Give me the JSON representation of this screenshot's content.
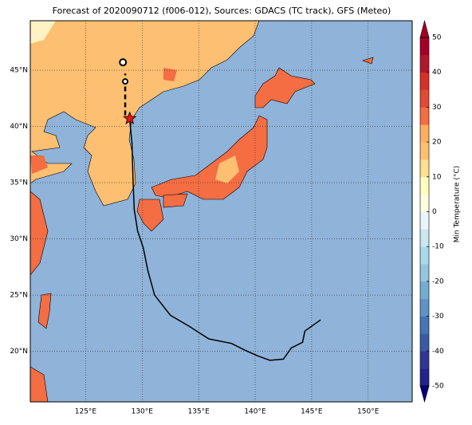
{
  "title": "Forecast of 2020090712 (f006-012), Sources: GDACS (TC track), GFS (Meteo)",
  "map": {
    "type": "map",
    "xlim": [
      120.1,
      153.9
    ],
    "ylim": [
      15.5,
      49.4
    ],
    "xticks": [
      {
        "value": 125,
        "label": "125°E"
      },
      {
        "value": 130,
        "label": "130°E"
      },
      {
        "value": 135,
        "label": "135°E"
      },
      {
        "value": 140,
        "label": "140°E"
      },
      {
        "value": 145,
        "label": "145°E"
      },
      {
        "value": 150,
        "label": "150°E"
      }
    ],
    "yticks": [
      {
        "value": 20,
        "label": "20°N"
      },
      {
        "value": 25,
        "label": "25°N"
      },
      {
        "value": 30,
        "label": "30°N"
      },
      {
        "value": 35,
        "label": "35°N"
      },
      {
        "value": 40,
        "label": "40°N"
      },
      {
        "value": 45,
        "label": "45°N"
      }
    ],
    "grid": true,
    "track": {
      "color": "#000000",
      "lon": [
        145.8,
        144.4,
        144.2,
        143.2,
        142.5,
        141.3,
        140.2,
        139.1,
        137.9,
        135.9,
        134.2,
        132.5,
        131.1,
        130.5,
        130.1,
        129.6,
        129.3,
        129.2,
        129.1,
        128.9
      ],
      "lat": [
        22.8,
        21.8,
        20.8,
        20.3,
        19.3,
        19.2,
        19.6,
        20.1,
        20.7,
        21.1,
        22.2,
        23.2,
        25.0,
        27.2,
        29.2,
        30.7,
        32.6,
        35.0,
        38.5,
        40.6
      ]
    },
    "forecast_track": {
      "lon": [
        128.5,
        128.5
      ],
      "lat": [
        41.0,
        44.7
      ]
    },
    "positions": {
      "lon": [
        128.3,
        128.5
      ],
      "lat": [
        45.7,
        44.0
      ]
    },
    "current_position": {
      "lon": 128.9,
      "lat": 40.7,
      "color": "#e8150f"
    }
  },
  "colorbar": {
    "label": "Min Temperature (°C)",
    "ylim": [
      -50,
      50
    ],
    "yticks": [
      -50,
      -40,
      -30,
      -20,
      -10,
      0,
      10,
      20,
      30,
      40,
      50
    ],
    "colors": [
      "#23238a",
      "#313695",
      "#3a5aa5",
      "#4575b4",
      "#5f93c5",
      "#74add1",
      "#96c5de",
      "#abd9e9",
      "#cbe7f1",
      "#e8f5fa",
      "#ffffe0",
      "#ffffbf",
      "#fee090",
      "#fdbf71",
      "#fdae61",
      "#f46d43",
      "#e34a33",
      "#d73027",
      "#b2182b",
      "#a50026"
    ]
  }
}
